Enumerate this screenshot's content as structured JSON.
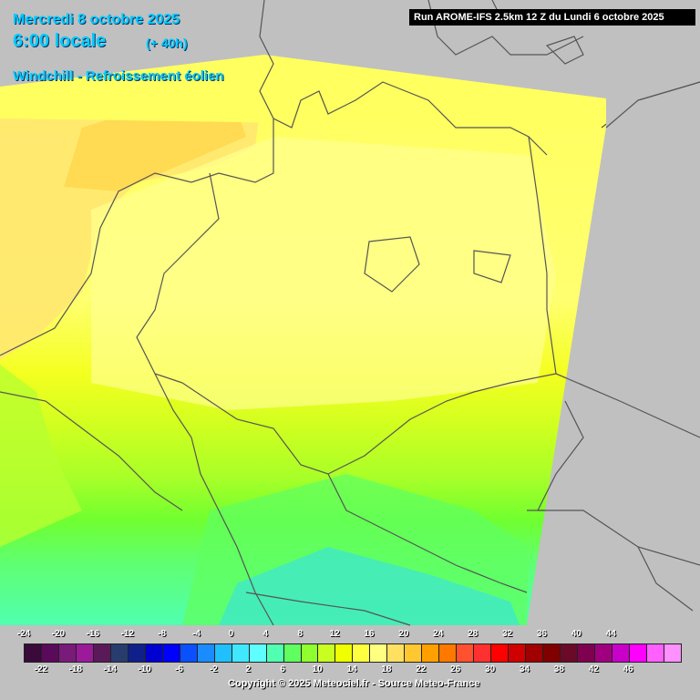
{
  "header": {
    "date": "Mercredi 8 octobre 2025",
    "time": "6:00 locale",
    "lead": "(+ 40h)",
    "parameter": "Windchill - Refroissement éolien",
    "run": "Run AROME-IFS 2.5km 12 Z du Lundi 6 octobre 2025"
  },
  "legend": {
    "top_labels": [
      "-24",
      "-20",
      "-16",
      "-12",
      "-8",
      "-4",
      "0",
      "4",
      "8",
      "12",
      "16",
      "20",
      "24",
      "28",
      "32",
      "36",
      "40",
      "44"
    ],
    "bottom_labels": [
      "-22",
      "-18",
      "-14",
      "-10",
      "-6",
      "-2",
      "2",
      "6",
      "10",
      "14",
      "18",
      "22",
      "26",
      "30",
      "34",
      "38",
      "42",
      "46"
    ],
    "colors": [
      "#3a0a3a",
      "#5a0a5a",
      "#7a1a7a",
      "#9a1a9a",
      "#5a1a5a",
      "#283c6e",
      "#10208a",
      "#0000d0",
      "#0000ff",
      "#0a50ff",
      "#1a8cff",
      "#20c0ff",
      "#40e8ff",
      "#60ffff",
      "#50ffb0",
      "#60ff60",
      "#90ff30",
      "#c8ff20",
      "#f0ff00",
      "#ffff40",
      "#ffff80",
      "#ffe060",
      "#ffc830",
      "#ffa000",
      "#ff7800",
      "#ff5030",
      "#ff3030",
      "#ff0000",
      "#d00000",
      "#a00000",
      "#800000",
      "#6a0a28",
      "#800050",
      "#a00080",
      "#c800c8",
      "#ff00ff",
      "#ff60ff",
      "#ff90ff"
    ]
  },
  "copyright": "Copyright © 2025 Meteociel.fr - Source Meteo-France"
}
